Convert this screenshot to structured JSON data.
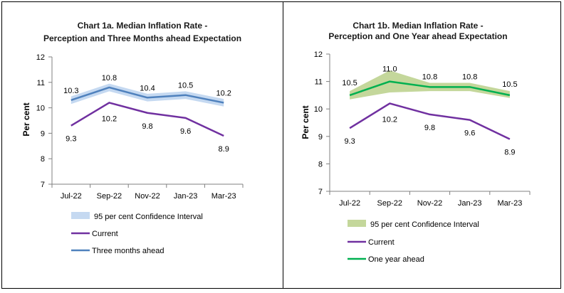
{
  "chart_data": [
    {
      "id": "chart1a",
      "type": "line",
      "title": [
        "Chart 1a. Median Inflation Rate -",
        "Perception and Three Months ahead Expectation"
      ],
      "ylabel": "Per cent",
      "xlabel": "",
      "ylim": [
        7,
        12
      ],
      "yticks": [
        7,
        8,
        9,
        10,
        11,
        12
      ],
      "categories": [
        "Jul-22",
        "Sep-22",
        "Nov-22",
        "Jan-23",
        "Mar-23"
      ],
      "band": {
        "name": "95 per cent Confidence Interval",
        "color": "#c5d9f1",
        "lower": [
          10.15,
          10.65,
          10.25,
          10.35,
          10.05
        ],
        "upper": [
          10.45,
          10.95,
          10.55,
          10.65,
          10.35
        ]
      },
      "series": [
        {
          "name": "Current",
          "color": "#7030a0",
          "values": [
            9.3,
            10.2,
            9.8,
            9.6,
            8.9
          ],
          "labels": [
            "9.3",
            "10.2",
            "9.8",
            "9.6",
            "8.9"
          ]
        },
        {
          "name": "Three months ahead",
          "color": "#4f81bd",
          "values": [
            10.3,
            10.8,
            10.4,
            10.5,
            10.2
          ],
          "labels": [
            "10.3",
            "10.8",
            "10.4",
            "10.5",
            "10.2"
          ]
        }
      ],
      "legend": [
        "95 per cent Confidence Interval",
        "Current",
        "Three months ahead"
      ]
    },
    {
      "id": "chart1b",
      "type": "line",
      "title": [
        "Chart 1b. Median Inflation Rate -",
        "Perception and One Year ahead Expectation"
      ],
      "ylabel": "Per cent",
      "xlabel": "",
      "ylim": [
        7,
        12
      ],
      "yticks": [
        7,
        8,
        9,
        10,
        11,
        12
      ],
      "categories": [
        "Jul-22",
        "Sep-22",
        "Nov-22",
        "Jan-23",
        "Mar-23"
      ],
      "band": {
        "name": "95 per cent Confidence Interval",
        "color": "#c4d79b",
        "lower": [
          10.35,
          10.6,
          10.65,
          10.65,
          10.4
        ],
        "upper": [
          10.65,
          11.4,
          10.95,
          10.95,
          10.65
        ]
      },
      "series": [
        {
          "name": "Current",
          "color": "#7030a0",
          "values": [
            9.3,
            10.2,
            9.8,
            9.6,
            8.9
          ],
          "labels": [
            "9.3",
            "10.2",
            "9.8",
            "9.6",
            "8.9"
          ]
        },
        {
          "name": "One year ahead",
          "color": "#00b050",
          "values": [
            10.5,
            11.0,
            10.8,
            10.8,
            10.5
          ],
          "labels": [
            "10.5",
            "11.0",
            "10.8",
            "10.8",
            "10.5"
          ]
        }
      ],
      "legend": [
        "95 per cent Confidence Interval",
        "Current",
        "One year ahead"
      ]
    }
  ]
}
